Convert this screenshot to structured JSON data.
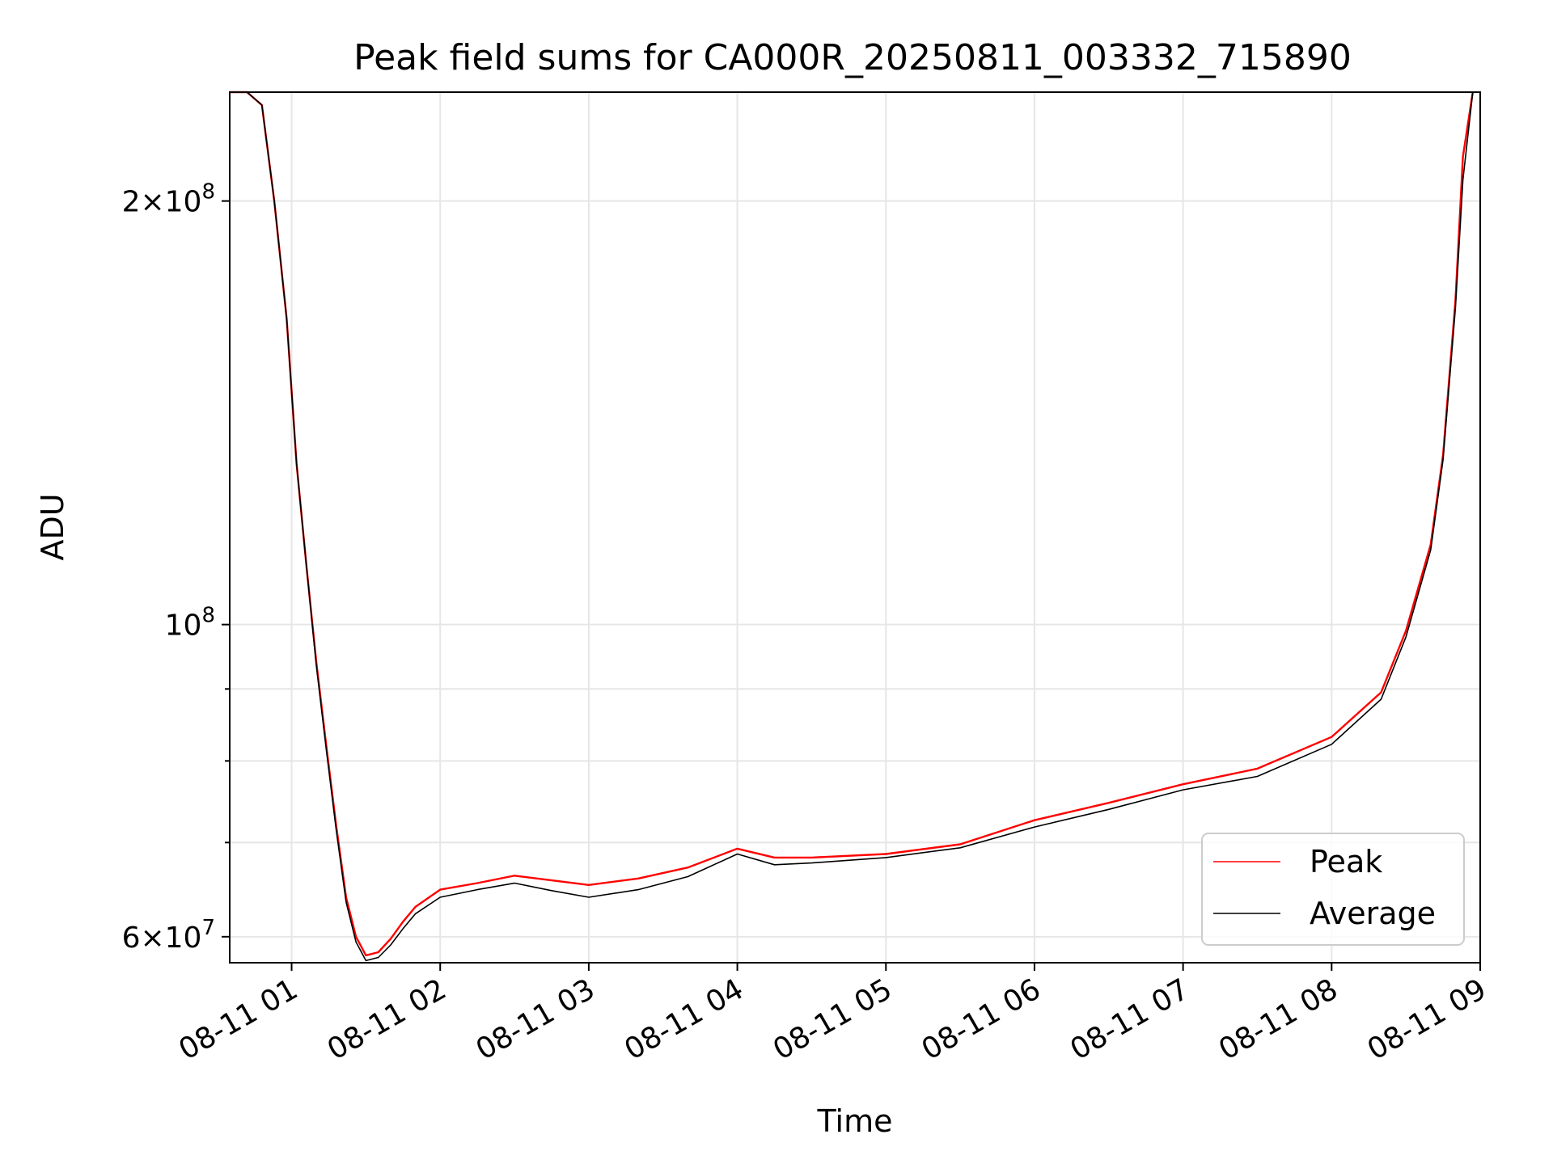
{
  "chart_data": {
    "type": "line",
    "title": "Peak field sums for CA000R_20250811_003332_715890",
    "xlabel": "Time",
    "ylabel": "ADU",
    "y_scale": "log",
    "ylim": [
      57500000,
      239000000
    ],
    "xlim": [
      "2025-08-11 00:35",
      "2025-08-11 09:00"
    ],
    "grid": true,
    "legend_position": "lower-right",
    "x_ticks": [
      "08-11 01",
      "08-11 02",
      "08-11 03",
      "08-11 04",
      "08-11 05",
      "08-11 06",
      "08-11 07",
      "08-11 08",
      "08-11 09"
    ],
    "y_ticks": [
      {
        "value": 60000000,
        "label": "6×10",
        "exp": "7"
      },
      {
        "value": 100000000,
        "label": "10",
        "exp": "8"
      },
      {
        "value": 200000000,
        "label": "2×10",
        "exp": "8"
      }
    ],
    "series": [
      {
        "name": "Peak",
        "color": "#ff0000",
        "x": [
          "2025-08-11 00:35",
          "2025-08-11 00:42",
          "2025-08-11 00:48",
          "2025-08-11 00:53",
          "2025-08-11 00:58",
          "2025-08-11 01:02",
          "2025-08-11 01:06",
          "2025-08-11 01:10",
          "2025-08-11 01:14",
          "2025-08-11 01:18",
          "2025-08-11 01:22",
          "2025-08-11 01:26",
          "2025-08-11 01:30",
          "2025-08-11 01:35",
          "2025-08-11 01:40",
          "2025-08-11 01:45",
          "2025-08-11 01:50",
          "2025-08-11 02:00",
          "2025-08-11 02:15",
          "2025-08-11 02:30",
          "2025-08-11 02:45",
          "2025-08-11 03:00",
          "2025-08-11 03:20",
          "2025-08-11 03:40",
          "2025-08-11 04:00",
          "2025-08-11 04:15",
          "2025-08-11 04:30",
          "2025-08-11 05:00",
          "2025-08-11 05:30",
          "2025-08-11 06:00",
          "2025-08-11 06:30",
          "2025-08-11 07:00",
          "2025-08-11 07:30",
          "2025-08-11 08:00",
          "2025-08-11 08:20",
          "2025-08-11 08:30",
          "2025-08-11 08:40",
          "2025-08-11 08:45",
          "2025-08-11 08:50",
          "2025-08-11 08:53",
          "2025-08-11 08:57"
        ],
        "y": [
          239000000,
          239000000,
          234000000,
          200000000,
          165000000,
          130000000,
          110000000,
          94000000,
          82000000,
          72000000,
          64000000,
          60000000,
          58200000,
          58500000,
          59800000,
          61500000,
          63000000,
          64800000,
          65500000,
          66300000,
          65800000,
          65300000,
          66000000,
          67200000,
          69300000,
          68300000,
          68300000,
          68700000,
          69800000,
          72600000,
          74700000,
          77000000,
          79000000,
          83200000,
          89500000,
          99000000,
          114000000,
          132000000,
          170000000,
          215000000,
          239000000
        ]
      },
      {
        "name": "Average",
        "color": "#000000",
        "x": [
          "2025-08-11 00:35",
          "2025-08-11 00:42",
          "2025-08-11 00:48",
          "2025-08-11 00:53",
          "2025-08-11 00:58",
          "2025-08-11 01:02",
          "2025-08-11 01:06",
          "2025-08-11 01:10",
          "2025-08-11 01:14",
          "2025-08-11 01:18",
          "2025-08-11 01:22",
          "2025-08-11 01:26",
          "2025-08-11 01:30",
          "2025-08-11 01:35",
          "2025-08-11 01:40",
          "2025-08-11 01:45",
          "2025-08-11 01:50",
          "2025-08-11 02:00",
          "2025-08-11 02:15",
          "2025-08-11 02:30",
          "2025-08-11 02:45",
          "2025-08-11 03:00",
          "2025-08-11 03:20",
          "2025-08-11 03:40",
          "2025-08-11 04:00",
          "2025-08-11 04:15",
          "2025-08-11 04:30",
          "2025-08-11 05:00",
          "2025-08-11 05:30",
          "2025-08-11 06:00",
          "2025-08-11 06:30",
          "2025-08-11 07:00",
          "2025-08-11 07:30",
          "2025-08-11 08:00",
          "2025-08-11 08:20",
          "2025-08-11 08:30",
          "2025-08-11 08:40",
          "2025-08-11 08:45",
          "2025-08-11 08:50",
          "2025-08-11 08:53",
          "2025-08-11 08:57"
        ],
        "y": [
          239000000,
          239000000,
          234000000,
          200000000,
          165000000,
          130000000,
          110000000,
          93500000,
          81500000,
          71500000,
          63500000,
          59500000,
          57700000,
          58000000,
          59200000,
          60800000,
          62300000,
          64000000,
          64800000,
          65500000,
          64700000,
          64000000,
          64800000,
          66200000,
          68700000,
          67500000,
          67700000,
          68300000,
          69400000,
          71800000,
          73900000,
          76300000,
          78000000,
          82200000,
          88500000,
          98000000,
          113000000,
          131000000,
          168000000,
          207000000,
          239000000
        ]
      }
    ]
  }
}
